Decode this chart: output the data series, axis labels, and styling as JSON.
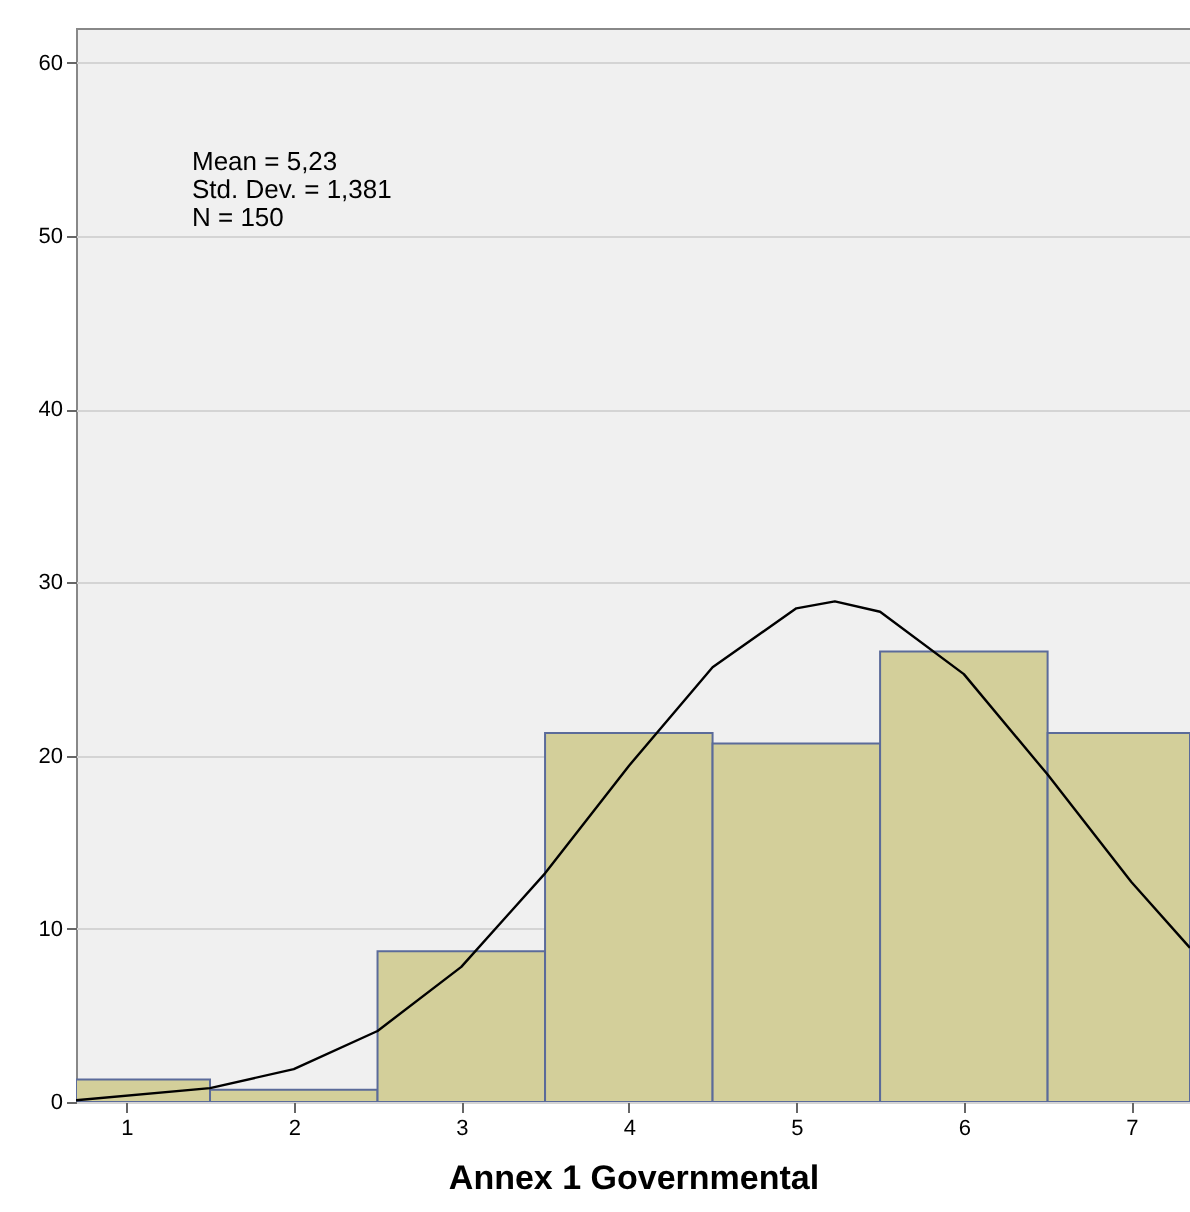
{
  "chart_data": {
    "type": "histogram",
    "xlabel": "Annex 1 Governmental",
    "bins": [
      0.7,
      1.5,
      2.5,
      3.5,
      4.5,
      5.5,
      6.5,
      7.35
    ],
    "values": [
      1.3,
      0.7,
      8.7,
      21.3,
      20.7,
      26.0,
      21.3
    ],
    "color": "#d3cf9a",
    "series": [
      {
        "type": "line",
        "color": "#000000",
        "x": [
          0.7,
          1.5,
          2,
          2.5,
          3,
          3.5,
          4,
          4.5,
          5,
          5.23,
          5.5,
          6,
          6.5,
          7,
          7.35
        ],
        "values": [
          0.1,
          0.8,
          1.9,
          4.1,
          7.8,
          13.2,
          19.4,
          25.1,
          28.5,
          28.9,
          28.3,
          24.7,
          18.9,
          12.7,
          8.9
        ]
      }
    ],
    "xlim": [
      0.7,
      7.35
    ],
    "xticks": [
      1,
      2,
      3,
      4,
      5,
      6,
      7
    ],
    "ylim": [
      0,
      62
    ],
    "yticks": [
      0,
      10,
      20,
      30,
      40,
      50,
      60
    ],
    "grid": "y",
    "annotations": [
      "Mean = 5,23",
      "Std. Dev. = 1,381",
      "N = 150"
    ]
  }
}
